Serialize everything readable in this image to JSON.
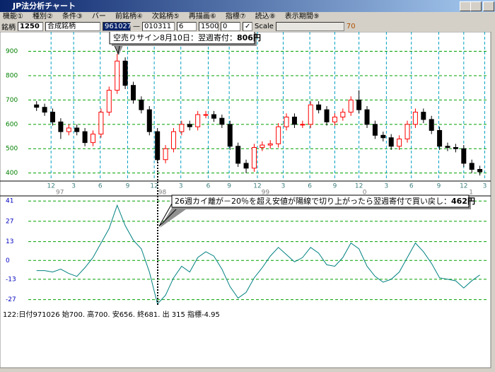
{
  "window": {
    "title": "JP法分析チャート"
  },
  "menu": [
    "機能①",
    "種別②",
    "条件③",
    "バー",
    "前銘柄④",
    "次銘柄⑤",
    "再描画⑥",
    "指標⑦",
    "読込⑧",
    "表示期間⑨"
  ],
  "toolbar": {
    "label": "銘柄",
    "code": "1250",
    "name": "合成銘柄",
    "start": "961027",
    "dash": "—",
    "end": "010311",
    "field1": "6",
    "field2": "1500",
    "field3": "0",
    "scale": "Scale",
    "value": "70"
  },
  "chart_data": [
    {
      "type": "candlestick",
      "open": [
        680,
        670,
        650,
        610,
        570,
        585,
        570,
        525,
        560,
        650,
        740,
        860,
        760,
        700,
        660,
        570,
        455,
        500,
        570,
        600,
        590,
        640,
        640,
        625,
        600,
        510,
        440,
        420,
        505,
        515,
        520,
        590,
        630,
        600,
        600,
        680,
        660,
        610,
        630,
        650,
        700,
        660,
        600,
        555,
        545,
        510,
        540,
        600,
        650,
        620,
        575,
        510,
        505,
        500,
        440,
        415
      ],
      "high": [
        695,
        685,
        665,
        625,
        600,
        600,
        585,
        575,
        665,
        755,
        890,
        875,
        775,
        715,
        675,
        585,
        515,
        585,
        615,
        615,
        655,
        655,
        655,
        640,
        615,
        525,
        455,
        520,
        530,
        535,
        605,
        645,
        645,
        615,
        695,
        695,
        675,
        645,
        665,
        715,
        740,
        675,
        615,
        570,
        560,
        555,
        615,
        665,
        665,
        635,
        590,
        525,
        520,
        515,
        455,
        430
      ],
      "low": [
        655,
        635,
        595,
        540,
        555,
        555,
        510,
        510,
        545,
        635,
        725,
        745,
        685,
        645,
        555,
        440,
        440,
        485,
        555,
        575,
        575,
        625,
        610,
        585,
        495,
        425,
        400,
        405,
        490,
        500,
        505,
        575,
        585,
        585,
        585,
        645,
        595,
        595,
        615,
        635,
        645,
        585,
        540,
        530,
        495,
        495,
        525,
        585,
        605,
        560,
        495,
        490,
        485,
        425,
        400,
        390
      ],
      "close": [
        670,
        650,
        610,
        570,
        585,
        570,
        525,
        560,
        650,
        740,
        860,
        760,
        700,
        660,
        570,
        455,
        500,
        570,
        600,
        590,
        640,
        640,
        625,
        600,
        510,
        440,
        420,
        505,
        515,
        520,
        590,
        630,
        600,
        600,
        680,
        660,
        610,
        630,
        650,
        700,
        660,
        600,
        555,
        545,
        510,
        540,
        600,
        650,
        620,
        575,
        510,
        505,
        500,
        440,
        415,
        405
      ],
      "up_color": "#ff0000",
      "down_color": "#000000",
      "ylim": [
        370,
        980
      ],
      "yticks": [
        400,
        500,
        600,
        700,
        800,
        900
      ],
      "xlim": [
        -0.5,
        56
      ],
      "xticks": [
        {
          "value": 1.8,
          "label": "12"
        },
        {
          "value": 4.6,
          "label": "3"
        },
        {
          "value": 7.9,
          "label": "6"
        },
        {
          "value": 11.3,
          "label": "9"
        },
        {
          "value": 14.6,
          "label": "12"
        },
        {
          "value": 17.9,
          "label": "3"
        },
        {
          "value": 21.3,
          "label": "6"
        },
        {
          "value": 23.9,
          "label": "9"
        },
        {
          "value": 27.4,
          "label": "12"
        },
        {
          "value": 30.6,
          "label": "3"
        },
        {
          "value": 33.9,
          "label": "6"
        },
        {
          "value": 37.0,
          "label": "9"
        },
        {
          "value": 40.0,
          "label": "12"
        },
        {
          "value": 43.4,
          "label": "3"
        },
        {
          "value": 46.5,
          "label": "6"
        },
        {
          "value": 49.9,
          "label": "9"
        },
        {
          "value": 53.0,
          "label": "12"
        },
        {
          "value": 55.6,
          "label": "3"
        }
      ],
      "year_ticks": [
        {
          "value": 2.9,
          "label": "97"
        },
        {
          "value": 15.6,
          "label": "98"
        },
        {
          "value": 28.4,
          "label": "99"
        },
        {
          "value": 40.7,
          "label": "0"
        },
        {
          "value": 53.9,
          "label": "1"
        }
      ],
      "grid": true,
      "annotation": {
        "text": "空売りサイン8月10日：翌週寄付：",
        "price": "806円"
      }
    },
    {
      "type": "line",
      "values": [
        -7,
        -7,
        -8,
        -6,
        -9,
        -11,
        -5,
        2,
        12,
        22,
        38,
        24,
        14,
        8,
        -8,
        -30,
        -24,
        -12,
        -4,
        -8,
        2,
        6,
        3,
        -6,
        -18,
        -26,
        -22,
        -12,
        -5,
        3,
        9,
        4,
        -1,
        2,
        9,
        5,
        -3,
        -4,
        2,
        12,
        8,
        -4,
        -11,
        -15,
        -13,
        -8,
        2,
        12,
        6,
        -2,
        -12,
        -13,
        -14,
        -19,
        -14,
        -10
      ],
      "color": "#008080",
      "ylim": [
        -35,
        45
      ],
      "yticks": [
        -27,
        -13,
        0,
        13,
        27,
        41
      ],
      "xlim": [
        -0.5,
        56
      ],
      "grid": true,
      "annotation": {
        "text": "26週カイ離が－20％を超え安値が陽線で切り上がったら翌週寄付で買い戻し：",
        "price": "462円"
      }
    }
  ],
  "status": "122:日付971026 始700. 高700. 安656. 終681. 出 315 指標-4.95"
}
